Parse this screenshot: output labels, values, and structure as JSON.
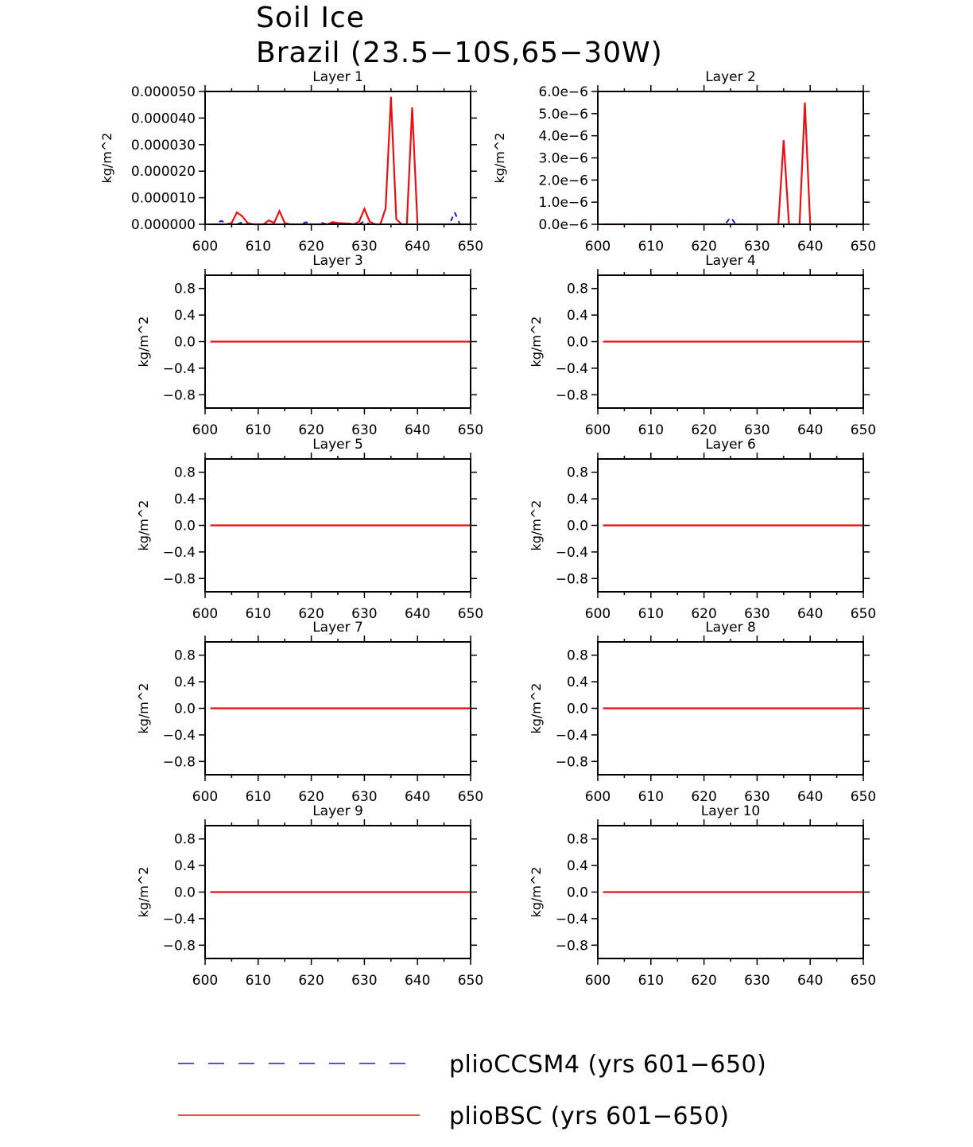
{
  "title": "Soil Ice",
  "subtitle": "Brazil (23.5−10S,65−30W)",
  "colors": {
    "pliocCSM4": "#1a1acc",
    "plioBSC": "#e81010",
    "axis": "#000000"
  },
  "legend": [
    {
      "label": "plioCCSM4 (yrs 601−650)",
      "style": "dashed",
      "color": "#1a1acc"
    },
    {
      "label": "plioBSC (yrs 601−650)",
      "style": "solid",
      "color": "#e81010"
    }
  ],
  "chart_data": [
    {
      "type": "line",
      "title": "Layer 1",
      "ylabel": "kg/m^2",
      "xlim": [
        600,
        650
      ],
      "ylim": [
        0,
        5e-05
      ],
      "xticks": [
        "600",
        "610",
        "620",
        "630",
        "640",
        "650"
      ],
      "yticks": [
        0,
        1e-05,
        2e-05,
        3e-05,
        4e-05,
        5e-05
      ],
      "ytick_labels": [
        "0.000000",
        "0.000010",
        "0.000020",
        "0.000030",
        "0.000040",
        "0.000050"
      ],
      "series": [
        {
          "name": "plioBSC (yrs 601−650)",
          "x": [
            601,
            602,
            603,
            604,
            605,
            606,
            607,
            608,
            609,
            610,
            611,
            612,
            613,
            614,
            615,
            616,
            617,
            618,
            619,
            620,
            621,
            622,
            623,
            624,
            625,
            626,
            627,
            628,
            629,
            630,
            631,
            632,
            633,
            634,
            635,
            636,
            637,
            638,
            639,
            640,
            641,
            642,
            643,
            644,
            645,
            646,
            647,
            648,
            649,
            650
          ],
          "y": [
            0,
            0,
            0,
            0,
            5e-07,
            4.5e-06,
            3e-06,
            5e-07,
            0,
            0,
            0,
            1.5e-06,
            5e-07,
            5e-06,
            5e-07,
            0,
            0,
            0,
            0,
            0,
            0,
            0,
            0,
            8e-07,
            5e-07,
            4e-07,
            3e-07,
            0,
            1e-06,
            5.8e-06,
            1e-06,
            0,
            0,
            6e-06,
            4.8e-05,
            2e-06,
            0,
            0,
            4.4e-05,
            0,
            0,
            0,
            0,
            0,
            0,
            0,
            0,
            0,
            0,
            0
          ]
        },
        {
          "name": "plioCCSM4 (yrs 601−650)",
          "x": [
            601,
            602,
            603,
            604,
            605,
            606,
            607,
            608,
            609,
            610,
            611,
            612,
            613,
            614,
            615,
            616,
            617,
            618,
            619,
            620,
            621,
            622,
            623,
            624,
            625,
            626,
            627,
            628,
            629,
            630,
            631,
            632,
            633,
            634,
            635,
            636,
            637,
            638,
            639,
            640,
            641,
            642,
            643,
            644,
            645,
            646,
            647,
            648,
            649,
            650
          ],
          "y": [
            0,
            0,
            1.3e-06,
            5e-07,
            0,
            0,
            8e-07,
            0,
            0,
            0,
            0,
            0,
            0,
            0,
            0,
            0,
            0,
            0,
            8e-07,
            0,
            0,
            5e-07,
            0,
            4e-07,
            0,
            0,
            0,
            0,
            0,
            1.2e-06,
            0,
            0,
            0,
            0,
            0,
            0,
            0,
            0,
            0,
            0,
            0,
            0,
            0,
            0,
            0,
            0,
            4.5e-06,
            0,
            0,
            0
          ]
        }
      ]
    },
    {
      "type": "line",
      "title": "Layer 2",
      "ylabel": "kg/m^2",
      "xlim": [
        600,
        650
      ],
      "ylim": [
        0,
        6e-06
      ],
      "xticks": [
        "600",
        "610",
        "620",
        "630",
        "640",
        "650"
      ],
      "yticks": [
        0,
        1e-06,
        2e-06,
        3e-06,
        4e-06,
        5e-06,
        6e-06
      ],
      "ytick_labels": [
        "0.0e−6",
        "1.0e−6",
        "2.0e−6",
        "3.0e−6",
        "4.0e−6",
        "5.0e−6",
        "6.0e−6"
      ],
      "series": [
        {
          "name": "plioBSC (yrs 601−650)",
          "x": [
            601,
            633,
            634,
            635,
            636,
            637,
            638,
            639,
            640,
            641,
            650
          ],
          "y": [
            0,
            0,
            0,
            3.8e-06,
            0,
            0,
            0,
            5.5e-06,
            0,
            0,
            0
          ]
        },
        {
          "name": "plioCCSM4 (yrs 601−650)",
          "x": [
            601,
            624,
            625,
            626,
            650
          ],
          "y": [
            0,
            0,
            3.2e-07,
            0,
            0
          ]
        }
      ]
    },
    {
      "type": "line",
      "title": "Layer 3",
      "ylabel": "kg/m^2",
      "xlim": [
        600,
        650
      ],
      "ylim": [
        -1,
        1
      ],
      "xticks": [
        "600",
        "610",
        "620",
        "630",
        "640",
        "650"
      ],
      "yticks": [
        -0.8,
        -0.4,
        0,
        0.4,
        0.8
      ],
      "ytick_labels": [
        "−0.8",
        "−0.4",
        "0.0",
        "0.4",
        "0.8"
      ],
      "series": [
        {
          "name": "plioBSC (yrs 601−650)",
          "x": [
            601,
            650
          ],
          "y": [
            0,
            0
          ]
        },
        {
          "name": "plioCCSM4 (yrs 601−650)",
          "x": [
            601,
            650
          ],
          "y": [
            0,
            0
          ]
        }
      ]
    },
    {
      "type": "line",
      "title": "Layer 4",
      "ylabel": "kg/m^2",
      "xlim": [
        600,
        650
      ],
      "ylim": [
        -1,
        1
      ],
      "xticks": [
        "600",
        "610",
        "620",
        "630",
        "640",
        "650"
      ],
      "yticks": [
        -0.8,
        -0.4,
        0,
        0.4,
        0.8
      ],
      "ytick_labels": [
        "−0.8",
        "−0.4",
        "0.0",
        "0.4",
        "0.8"
      ],
      "series": [
        {
          "name": "plioBSC (yrs 601−650)",
          "x": [
            601,
            650
          ],
          "y": [
            0,
            0
          ]
        },
        {
          "name": "plioCCSM4 (yrs 601−650)",
          "x": [
            601,
            650
          ],
          "y": [
            0,
            0
          ]
        }
      ]
    },
    {
      "type": "line",
      "title": "Layer 5",
      "ylabel": "kg/m^2",
      "xlim": [
        600,
        650
      ],
      "ylim": [
        -1,
        1
      ],
      "xticks": [
        "600",
        "610",
        "620",
        "630",
        "640",
        "650"
      ],
      "yticks": [
        -0.8,
        -0.4,
        0,
        0.4,
        0.8
      ],
      "ytick_labels": [
        "−0.8",
        "−0.4",
        "0.0",
        "0.4",
        "0.8"
      ],
      "series": [
        {
          "name": "plioBSC (yrs 601−650)",
          "x": [
            601,
            650
          ],
          "y": [
            0,
            0
          ]
        },
        {
          "name": "plioCCSM4 (yrs 601−650)",
          "x": [
            601,
            650
          ],
          "y": [
            0,
            0
          ]
        }
      ]
    },
    {
      "type": "line",
      "title": "Layer 6",
      "ylabel": "kg/m^2",
      "xlim": [
        600,
        650
      ],
      "ylim": [
        -1,
        1
      ],
      "xticks": [
        "600",
        "610",
        "620",
        "630",
        "640",
        "650"
      ],
      "yticks": [
        -0.8,
        -0.4,
        0,
        0.4,
        0.8
      ],
      "ytick_labels": [
        "−0.8",
        "−0.4",
        "0.0",
        "0.4",
        "0.8"
      ],
      "series": [
        {
          "name": "plioBSC (yrs 601−650)",
          "x": [
            601,
            650
          ],
          "y": [
            0,
            0
          ]
        },
        {
          "name": "plioCCSM4 (yrs 601−650)",
          "x": [
            601,
            650
          ],
          "y": [
            0,
            0
          ]
        }
      ]
    },
    {
      "type": "line",
      "title": "Layer 7",
      "ylabel": "kg/m^2",
      "xlim": [
        600,
        650
      ],
      "ylim": [
        -1,
        1
      ],
      "xticks": [
        "600",
        "610",
        "620",
        "630",
        "640",
        "650"
      ],
      "yticks": [
        -0.8,
        -0.4,
        0,
        0.4,
        0.8
      ],
      "ytick_labels": [
        "−0.8",
        "−0.4",
        "0.0",
        "0.4",
        "0.8"
      ],
      "series": [
        {
          "name": "plioBSC (yrs 601−650)",
          "x": [
            601,
            650
          ],
          "y": [
            0,
            0
          ]
        },
        {
          "name": "plioCCSM4 (yrs 601−650)",
          "x": [
            601,
            650
          ],
          "y": [
            0,
            0
          ]
        }
      ]
    },
    {
      "type": "line",
      "title": "Layer 8",
      "ylabel": "kg/m^2",
      "xlim": [
        600,
        650
      ],
      "ylim": [
        -1,
        1
      ],
      "xticks": [
        "600",
        "610",
        "620",
        "630",
        "640",
        "650"
      ],
      "yticks": [
        -0.8,
        -0.4,
        0,
        0.4,
        0.8
      ],
      "ytick_labels": [
        "−0.8",
        "−0.4",
        "0.0",
        "0.4",
        "0.8"
      ],
      "series": [
        {
          "name": "plioBSC (yrs 601−650)",
          "x": [
            601,
            650
          ],
          "y": [
            0,
            0
          ]
        },
        {
          "name": "plioCCSM4 (yrs 601−650)",
          "x": [
            601,
            650
          ],
          "y": [
            0,
            0
          ]
        }
      ]
    },
    {
      "type": "line",
      "title": "Layer 9",
      "ylabel": "kg/m^2",
      "xlim": [
        600,
        650
      ],
      "ylim": [
        -1,
        1
      ],
      "xticks": [
        "600",
        "610",
        "620",
        "630",
        "640",
        "650"
      ],
      "yticks": [
        -0.8,
        -0.4,
        0,
        0.4,
        0.8
      ],
      "ytick_labels": [
        "−0.8",
        "−0.4",
        "0.0",
        "0.4",
        "0.8"
      ],
      "series": [
        {
          "name": "plioBSC (yrs 601−650)",
          "x": [
            601,
            650
          ],
          "y": [
            0,
            0
          ]
        },
        {
          "name": "plioCCSM4 (yrs 601−650)",
          "x": [
            601,
            650
          ],
          "y": [
            0,
            0
          ]
        }
      ]
    },
    {
      "type": "line",
      "title": "Layer 10",
      "ylabel": "kg/m^2",
      "xlim": [
        600,
        650
      ],
      "ylim": [
        -1,
        1
      ],
      "xticks": [
        "600",
        "610",
        "620",
        "630",
        "640",
        "650"
      ],
      "yticks": [
        -0.8,
        -0.4,
        0,
        0.4,
        0.8
      ],
      "ytick_labels": [
        "−0.8",
        "−0.4",
        "0.0",
        "0.4",
        "0.8"
      ],
      "series": [
        {
          "name": "plioBSC (yrs 601−650)",
          "x": [
            601,
            650
          ],
          "y": [
            0,
            0
          ]
        },
        {
          "name": "plioCCSM4 (yrs 601−650)",
          "x": [
            601,
            650
          ],
          "y": [
            0,
            0
          ]
        }
      ]
    }
  ]
}
